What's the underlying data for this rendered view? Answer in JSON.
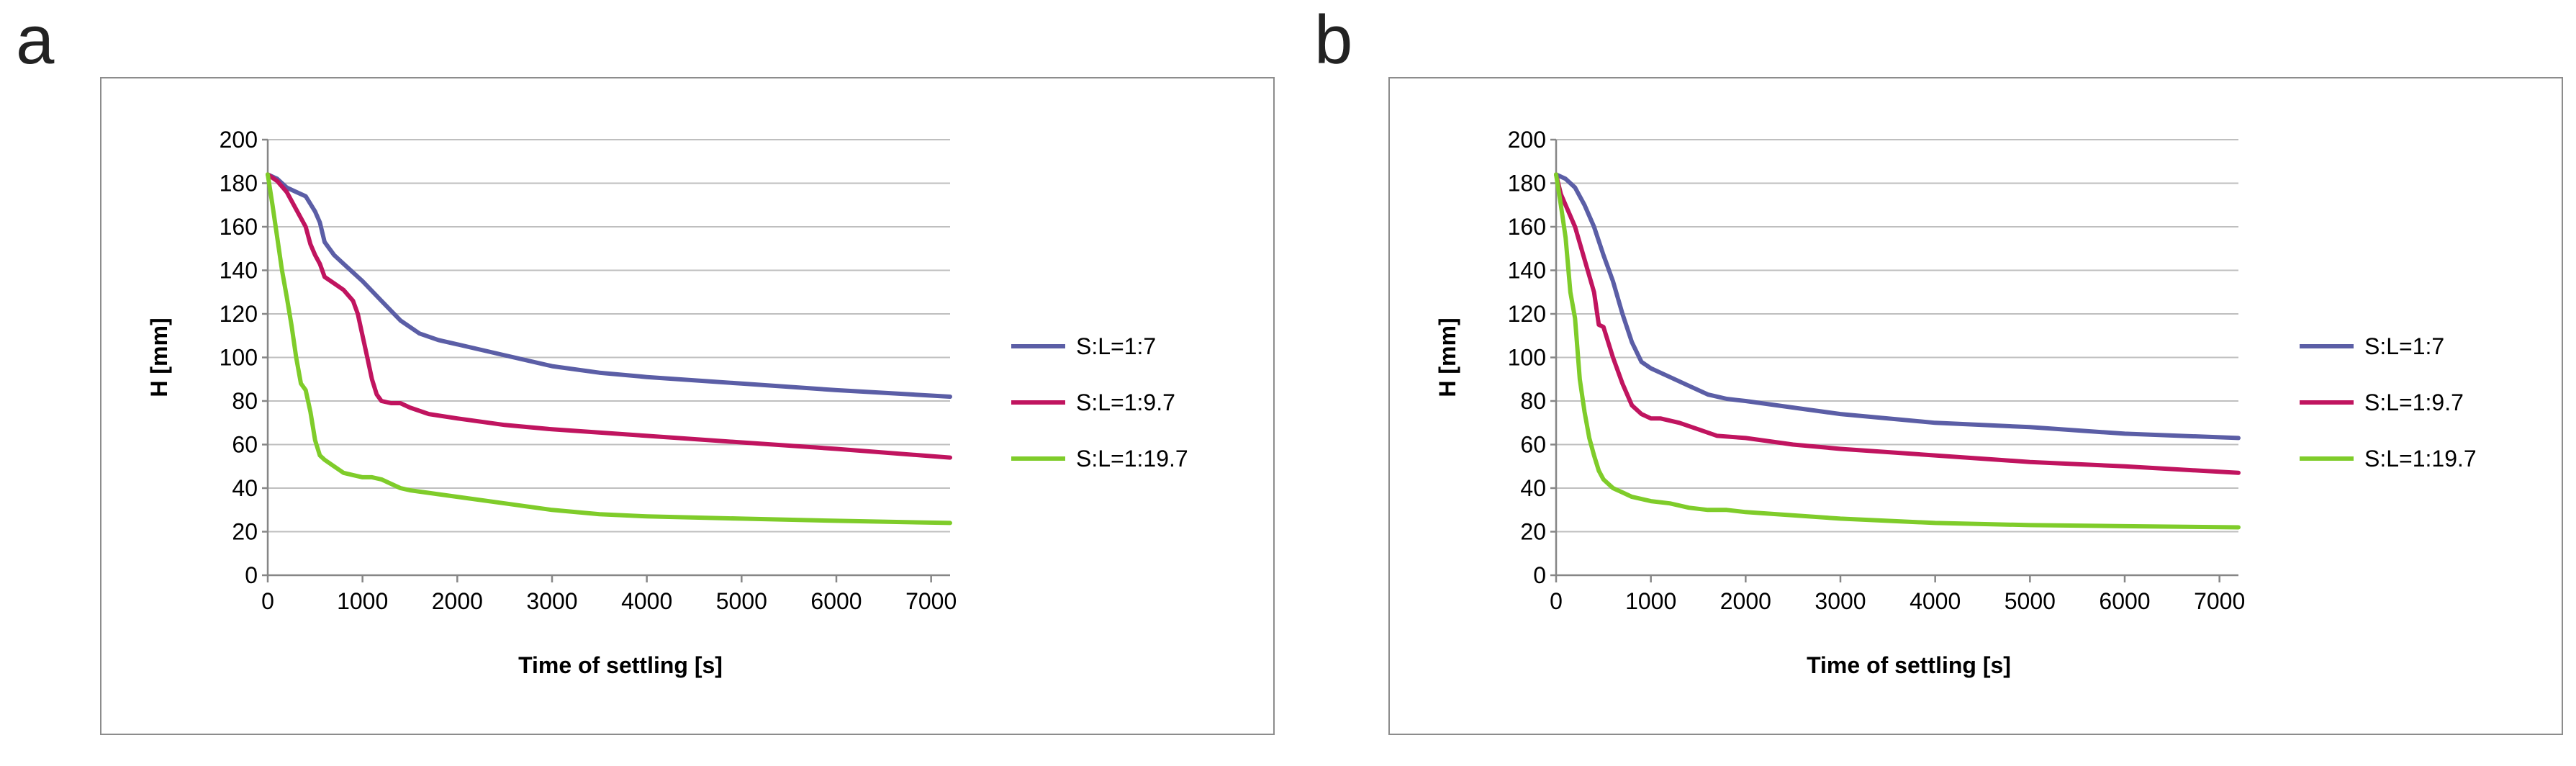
{
  "panels": [
    {
      "label": "a"
    },
    {
      "label": "b"
    }
  ],
  "chart_data": [
    {
      "type": "line",
      "panel": "a",
      "xlabel": "Time of settling [s]",
      "ylabel": "H [mm]",
      "xlim": [
        0,
        7200
      ],
      "ylim": [
        0,
        200
      ],
      "xticks": [
        0,
        1000,
        2000,
        3000,
        4000,
        5000,
        6000,
        7000
      ],
      "yticks": [
        0,
        20,
        40,
        60,
        80,
        100,
        120,
        140,
        160,
        180,
        200
      ],
      "grid": "horizontal",
      "legend_position": "right",
      "series": [
        {
          "name": "S:L=1:7",
          "color": "#5b5ea6",
          "points": [
            [
              0,
              184
            ],
            [
              100,
              182
            ],
            [
              200,
              178
            ],
            [
              300,
              176
            ],
            [
              400,
              174
            ],
            [
              500,
              167
            ],
            [
              550,
              162
            ],
            [
              600,
              153
            ],
            [
              700,
              147
            ],
            [
              800,
              143
            ],
            [
              900,
              139
            ],
            [
              1000,
              135
            ],
            [
              1200,
              126
            ],
            [
              1400,
              117
            ],
            [
              1600,
              111
            ],
            [
              1800,
              108
            ],
            [
              2000,
              106
            ],
            [
              2500,
              101
            ],
            [
              3000,
              96
            ],
            [
              3500,
              93
            ],
            [
              4000,
              91
            ],
            [
              5000,
              88
            ],
            [
              6000,
              85
            ],
            [
              7200,
              82
            ]
          ]
        },
        {
          "name": "S:L=1:9.7",
          "color": "#c0145f",
          "points": [
            [
              0,
              184
            ],
            [
              100,
              181
            ],
            [
              200,
              176
            ],
            [
              300,
              168
            ],
            [
              400,
              160
            ],
            [
              450,
              152
            ],
            [
              500,
              147
            ],
            [
              550,
              143
            ],
            [
              600,
              137
            ],
            [
              700,
              134
            ],
            [
              800,
              131
            ],
            [
              900,
              126
            ],
            [
              950,
              120
            ],
            [
              1000,
              110
            ],
            [
              1050,
              100
            ],
            [
              1100,
              90
            ],
            [
              1150,
              83
            ],
            [
              1200,
              80
            ],
            [
              1300,
              79
            ],
            [
              1400,
              79
            ],
            [
              1500,
              77
            ],
            [
              1700,
              74
            ],
            [
              2000,
              72
            ],
            [
              2500,
              69
            ],
            [
              3000,
              67
            ],
            [
              4000,
              64
            ],
            [
              5000,
              61
            ],
            [
              6000,
              58
            ],
            [
              7200,
              54
            ]
          ]
        },
        {
          "name": "S:L=1:19.7",
          "color": "#7fcc2a",
          "points": [
            [
              0,
              184
            ],
            [
              50,
              170
            ],
            [
              100,
              155
            ],
            [
              150,
              140
            ],
            [
              200,
              128
            ],
            [
              250,
              115
            ],
            [
              300,
              100
            ],
            [
              350,
              88
            ],
            [
              400,
              85
            ],
            [
              450,
              75
            ],
            [
              500,
              62
            ],
            [
              550,
              55
            ],
            [
              600,
              53
            ],
            [
              700,
              50
            ],
            [
              800,
              47
            ],
            [
              900,
              46
            ],
            [
              1000,
              45
            ],
            [
              1100,
              45
            ],
            [
              1200,
              44
            ],
            [
              1300,
              42
            ],
            [
              1400,
              40
            ],
            [
              1500,
              39
            ],
            [
              2000,
              36
            ],
            [
              2500,
              33
            ],
            [
              3000,
              30
            ],
            [
              3500,
              28
            ],
            [
              4000,
              27
            ],
            [
              5000,
              26
            ],
            [
              6000,
              25
            ],
            [
              7200,
              24
            ]
          ]
        }
      ]
    },
    {
      "type": "line",
      "panel": "b",
      "xlabel": "Time of settling [s]",
      "ylabel": "H [mm]",
      "xlim": [
        0,
        7200
      ],
      "ylim": [
        0,
        200
      ],
      "xticks": [
        0,
        1000,
        2000,
        3000,
        4000,
        5000,
        6000,
        7000
      ],
      "yticks": [
        0,
        20,
        40,
        60,
        80,
        100,
        120,
        140,
        160,
        180,
        200
      ],
      "grid": "horizontal",
      "legend_position": "right",
      "series": [
        {
          "name": "S:L=1:7",
          "color": "#5b5ea6",
          "points": [
            [
              0,
              184
            ],
            [
              100,
              182
            ],
            [
              200,
              178
            ],
            [
              300,
              170
            ],
            [
              400,
              160
            ],
            [
              500,
              147
            ],
            [
              600,
              135
            ],
            [
              700,
              120
            ],
            [
              800,
              107
            ],
            [
              900,
              98
            ],
            [
              1000,
              95
            ],
            [
              1200,
              91
            ],
            [
              1400,
              87
            ],
            [
              1600,
              83
            ],
            [
              1800,
              81
            ],
            [
              2000,
              80
            ],
            [
              2500,
              77
            ],
            [
              3000,
              74
            ],
            [
              4000,
              70
            ],
            [
              5000,
              68
            ],
            [
              6000,
              65
            ],
            [
              7200,
              63
            ]
          ]
        },
        {
          "name": "S:L=1:9.7",
          "color": "#c0145f",
          "points": [
            [
              0,
              184
            ],
            [
              50,
              175
            ],
            [
              100,
              170
            ],
            [
              200,
              160
            ],
            [
              300,
              145
            ],
            [
              400,
              130
            ],
            [
              450,
              115
            ],
            [
              500,
              114
            ],
            [
              600,
              100
            ],
            [
              700,
              88
            ],
            [
              800,
              78
            ],
            [
              900,
              74
            ],
            [
              1000,
              72
            ],
            [
              1100,
              72
            ],
            [
              1300,
              70
            ],
            [
              1500,
              67
            ],
            [
              1700,
              64
            ],
            [
              2000,
              63
            ],
            [
              2500,
              60
            ],
            [
              3000,
              58
            ],
            [
              4000,
              55
            ],
            [
              5000,
              52
            ],
            [
              6000,
              50
            ],
            [
              7200,
              47
            ]
          ]
        },
        {
          "name": "S:L=1:19.7",
          "color": "#7fcc2a",
          "points": [
            [
              0,
              184
            ],
            [
              50,
              170
            ],
            [
              100,
              155
            ],
            [
              150,
              130
            ],
            [
              200,
              118
            ],
            [
              250,
              90
            ],
            [
              300,
              75
            ],
            [
              350,
              63
            ],
            [
              400,
              55
            ],
            [
              450,
              48
            ],
            [
              500,
              44
            ],
            [
              600,
              40
            ],
            [
              700,
              38
            ],
            [
              800,
              36
            ],
            [
              900,
              35
            ],
            [
              1000,
              34
            ],
            [
              1200,
              33
            ],
            [
              1400,
              31
            ],
            [
              1600,
              30
            ],
            [
              1800,
              30
            ],
            [
              2000,
              29
            ],
            [
              3000,
              26
            ],
            [
              4000,
              24
            ],
            [
              5000,
              23
            ],
            [
              6000,
              22.5
            ],
            [
              7200,
              22
            ]
          ]
        }
      ]
    }
  ]
}
